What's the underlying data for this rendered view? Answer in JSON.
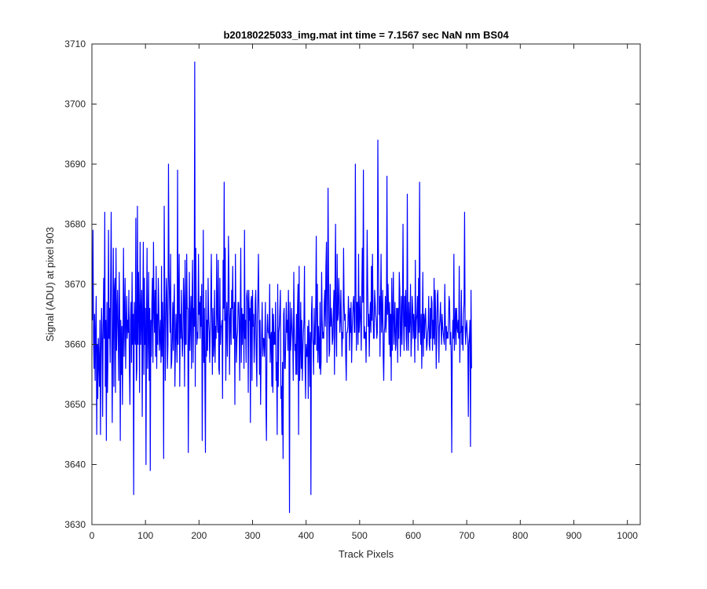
{
  "chart_data": {
    "type": "line",
    "title": "b20180225033_img.mat int time = 7.1567 sec  NaN nm BS04",
    "xlabel": "Track Pixels",
    "ylabel": "Signal (ADU) at pixel 903",
    "xlim": [
      0,
      1024
    ],
    "ylim": [
      3630,
      3710
    ],
    "xticks": [
      0,
      100,
      200,
      300,
      400,
      500,
      600,
      700,
      800,
      900,
      1000
    ],
    "yticks": [
      3630,
      3640,
      3650,
      3660,
      3670,
      3680,
      3690,
      3700,
      3710
    ],
    "grid": false,
    "legend": "none",
    "series_color": "#0000ff",
    "series": [
      {
        "x_start": 1,
        "x_step": 1,
        "values": [
          3664,
          3679,
          3661,
          3656,
          3665,
          3654,
          3662,
          3668,
          3645,
          3660,
          3651,
          3661,
          3657,
          3653,
          3664,
          3645,
          3659,
          3666,
          3661,
          3648,
          3663,
          3671,
          3661,
          3682,
          3653,
          3664,
          3644,
          3667,
          3652,
          3658,
          3679,
          3661,
          3666,
          3657,
          3671,
          3682,
          3660,
          3647,
          3663,
          3676,
          3653,
          3669,
          3671,
          3652,
          3676,
          3659,
          3665,
          3669,
          3661,
          3654,
          3672,
          3664,
          3644,
          3664,
          3655,
          3663,
          3650,
          3661,
          3676,
          3658,
          3665,
          3671,
          3656,
          3663,
          3668,
          3661,
          3664,
          3662,
          3669,
          3656,
          3650,
          3664,
          3667,
          3657,
          3672,
          3660,
          3665,
          3635,
          3667,
          3662,
          3660,
          3681,
          3654,
          3656,
          3683,
          3660,
          3672,
          3665,
          3652,
          3677,
          3660,
          3665,
          3669,
          3648,
          3666,
          3677,
          3655,
          3671,
          3660,
          3666,
          3640,
          3665,
          3676,
          3656,
          3661,
          3672,
          3654,
          3666,
          3639,
          3664,
          3658,
          3667,
          3671,
          3657,
          3677,
          3666,
          3662,
          3669,
          3658,
          3673,
          3656,
          3665,
          3660,
          3671,
          3666,
          3659,
          3661,
          3664,
          3657,
          3673,
          3658,
          3667,
          3661,
          3641,
          3683,
          3669,
          3654,
          3664,
          3671,
          3668,
          3656,
          3660,
          3690,
          3672,
          3667,
          3662,
          3675,
          3656,
          3657,
          3661,
          3667,
          3659,
          3666,
          3670,
          3653,
          3660,
          3665,
          3661,
          3657,
          3689,
          3660,
          3668,
          3675,
          3653,
          3665,
          3661,
          3669,
          3662,
          3658,
          3661,
          3671,
          3667,
          3653,
          3674,
          3660,
          3660,
          3675,
          3666,
          3666,
          3642,
          3660,
          3672,
          3659,
          3664,
          3668,
          3656,
          3667,
          3674,
          3657,
          3666,
          3663,
          3707,
          3653,
          3676,
          3665,
          3660,
          3662,
          3661,
          3675,
          3665,
          3667,
          3661,
          3668,
          3663,
          3670,
          3644,
          3660,
          3679,
          3657,
          3666,
          3654,
          3642,
          3669,
          3658,
          3664,
          3659,
          3671,
          3664,
          3662,
          3657,
          3663,
          3667,
          3675,
          3663,
          3655,
          3666,
          3658,
          3660,
          3669,
          3657,
          3663,
          3661,
          3675,
          3665,
          3662,
          3674,
          3656,
          3655,
          3671,
          3660,
          3663,
          3663,
          3664,
          3651,
          3674,
          3666,
          3687,
          3664,
          3676,
          3654,
          3663,
          3667,
          3658,
          3665,
          3678,
          3670,
          3655,
          3664,
          3666,
          3660,
          3669,
          3666,
          3673,
          3661,
          3661,
          3667,
          3650,
          3675,
          3664,
          3657,
          3661,
          3662,
          3667,
          3667,
          3664,
          3654,
          3664,
          3676,
          3657,
          3666,
          3660,
          3665,
          3665,
          3656,
          3679,
          3661,
          3664,
          3657,
          3668,
          3669,
          3667,
          3652,
          3669,
          3664,
          3666,
          3647,
          3667,
          3668,
          3654,
          3669,
          3663,
          3665,
          3657,
          3661,
          3667,
          3669,
          3658,
          3653,
          3665,
          3668,
          3675,
          3665,
          3655,
          3664,
          3650,
          3658,
          3662,
          3667,
          3658,
          3661,
          3661,
          3658,
          3661,
          3667,
          3650,
          3644,
          3662,
          3665,
          3662,
          3662,
          3661,
          3670,
          3657,
          3661,
          3662,
          3653,
          3666,
          3652,
          3665,
          3660,
          3662,
          3660,
          3667,
          3654,
          3657,
          3645,
          3670,
          3653,
          3662,
          3663,
          3666,
          3669,
          3651,
          3653,
          3645,
          3657,
          3641,
          3665,
          3666,
          3656,
          3656,
          3661,
          3667,
          3662,
          3664,
          3659,
          3669,
          3662,
          3632,
          3667,
          3659,
          3661,
          3666,
          3663,
          3661,
          3654,
          3672,
          3663,
          3659,
          3660,
          3655,
          3665,
          3655,
          3666,
          3670,
          3645,
          3673,
          3654,
          3659,
          3667,
          3656,
          3664,
          3654,
          3659,
          3662,
          3664,
          3673,
          3657,
          3651,
          3660,
          3658,
          3658,
          3663,
          3651,
          3664,
          3661,
          3653,
          3662,
          3635,
          3665,
          3668,
          3661,
          3660,
          3655,
          3666,
          3660,
          3660,
          3667,
          3678,
          3659,
          3670,
          3657,
          3663,
          3660,
          3656,
          3667,
          3655,
          3657,
          3672,
          3664,
          3661,
          3662,
          3661,
          3667,
          3669,
          3663,
          3673,
          3677,
          3657,
          3665,
          3686,
          3671,
          3658,
          3659,
          3670,
          3663,
          3666,
          3664,
          3660,
          3661,
          3666,
          3669,
          3655,
          3670,
          3680,
          3662,
          3658,
          3675,
          3664,
          3665,
          3671,
          3668,
          3662,
          3664,
          3669,
          3663,
          3658,
          3662,
          3661,
          3676,
          3667,
          3664,
          3665,
          3658,
          3654,
          3662,
          3662,
          3663,
          3668,
          3665,
          3659,
          3666,
          3662,
          3667,
          3657,
          3662,
          3665,
          3667,
          3668,
          3662,
          3662,
          3690,
          3670,
          3659,
          3667,
          3667,
          3660,
          3675,
          3662,
          3664,
          3668,
          3664,
          3659,
          3669,
          3676,
          3667,
          3689,
          3661,
          3663,
          3661,
          3662,
          3657,
          3664,
          3679,
          3670,
          3663,
          3665,
          3658,
          3664,
          3667,
          3662,
          3673,
          3664,
          3675,
          3666,
          3661,
          3661,
          3669,
          3667,
          3665,
          3664,
          3661,
          3662,
          3694,
          3676,
          3665,
          3668,
          3658,
          3667,
          3675,
          3662,
          3665,
          3669,
          3658,
          3654,
          3662,
          3663,
          3668,
          3662,
          3664,
          3688,
          3665,
          3670,
          3666,
          3660,
          3667,
          3658,
          3665,
          3654,
          3671,
          3659,
          3665,
          3672,
          3660,
          3663,
          3667,
          3659,
          3660,
          3666,
          3666,
          3657,
          3666,
          3661,
          3672,
          3669,
          3658,
          3662,
          3668,
          3660,
          3666,
          3680,
          3664,
          3659,
          3668,
          3663,
          3669,
          3661,
          3659,
          3685,
          3663,
          3659,
          3667,
          3662,
          3664,
          3670,
          3658,
          3661,
          3668,
          3666,
          3661,
          3665,
          3663,
          3657,
          3674,
          3661,
          3664,
          3665,
          3668,
          3659,
          3671,
          3662,
          3687,
          3663,
          3660,
          3665,
          3656,
          3663,
          3672,
          3658,
          3665,
          3661,
          3664,
          3666,
          3663,
          3659,
          3660,
          3662,
          3663,
          3668,
          3660,
          3659,
          3666,
          3661,
          3668,
          3667,
          3659,
          3664,
          3661,
          3671,
          3660,
          3669,
          3665,
          3656,
          3661,
          3668,
          3669,
          3664,
          3657,
          3663,
          3664,
          3667,
          3663,
          3660,
          3665,
          3663,
          3662,
          3661,
          3660,
          3670,
          3664,
          3659,
          3663,
          3661,
          3662,
          3661,
          3664,
          3668,
          3667,
          3660,
          3662,
          3658,
          3642,
          3659,
          3664,
          3661,
          3675,
          3659,
          3663,
          3666,
          3660,
          3666,
          3663,
          3662,
          3664,
          3661,
          3673,
          3657,
          3662,
          3662,
          3669,
          3660,
          3663,
          3659,
          3665,
          3667,
          3682,
          3663,
          3660,
          3663,
          3664,
          3662,
          3661,
          3648,
          3660,
          3661,
          3664,
          3643,
          3669,
          3656
        ]
      }
    ]
  }
}
